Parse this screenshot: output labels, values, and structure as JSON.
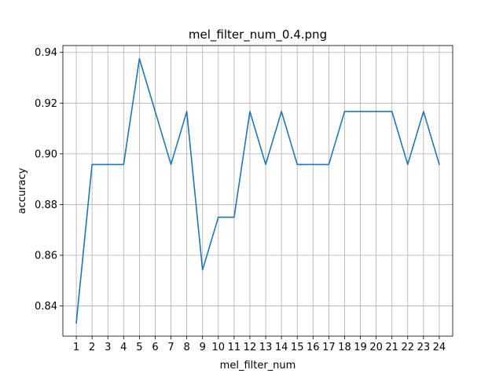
{
  "chart_data": {
    "type": "line",
    "title": "mel_filter_num_0.4.png",
    "xlabel": "mel_filter_num",
    "ylabel": "accuracy",
    "grid": true,
    "x": [
      1,
      2,
      3,
      4,
      5,
      6,
      7,
      8,
      9,
      10,
      11,
      12,
      13,
      14,
      15,
      16,
      17,
      18,
      19,
      20,
      21,
      22,
      23,
      24
    ],
    "series": [
      {
        "name": "accuracy",
        "color": "#1f77b4",
        "values": [
          0.8333,
          0.8958,
          0.8958,
          0.8958,
          0.9375,
          0.9167,
          0.8958,
          0.9167,
          0.8542,
          0.875,
          0.875,
          0.9167,
          0.8958,
          0.9167,
          0.8958,
          0.8958,
          0.8958,
          0.9167,
          0.9167,
          0.9167,
          0.9167,
          0.8958,
          0.9167,
          0.8958
        ]
      }
    ],
    "xticks": [
      "1",
      "2",
      "3",
      "4",
      "5",
      "6",
      "7",
      "8",
      "9",
      "10",
      "11",
      "12",
      "13",
      "14",
      "15",
      "16",
      "17",
      "18",
      "19",
      "20",
      "21",
      "22",
      "23",
      "24"
    ],
    "yticks": [
      0.84,
      0.86,
      0.88,
      0.9,
      0.92,
      0.94
    ],
    "ytick_labels": [
      "0.84",
      "0.86",
      "0.88",
      "0.90",
      "0.92",
      "0.94"
    ],
    "xlim": [
      0.15,
      24.85
    ],
    "ylim": [
      0.8281,
      0.9427
    ]
  }
}
